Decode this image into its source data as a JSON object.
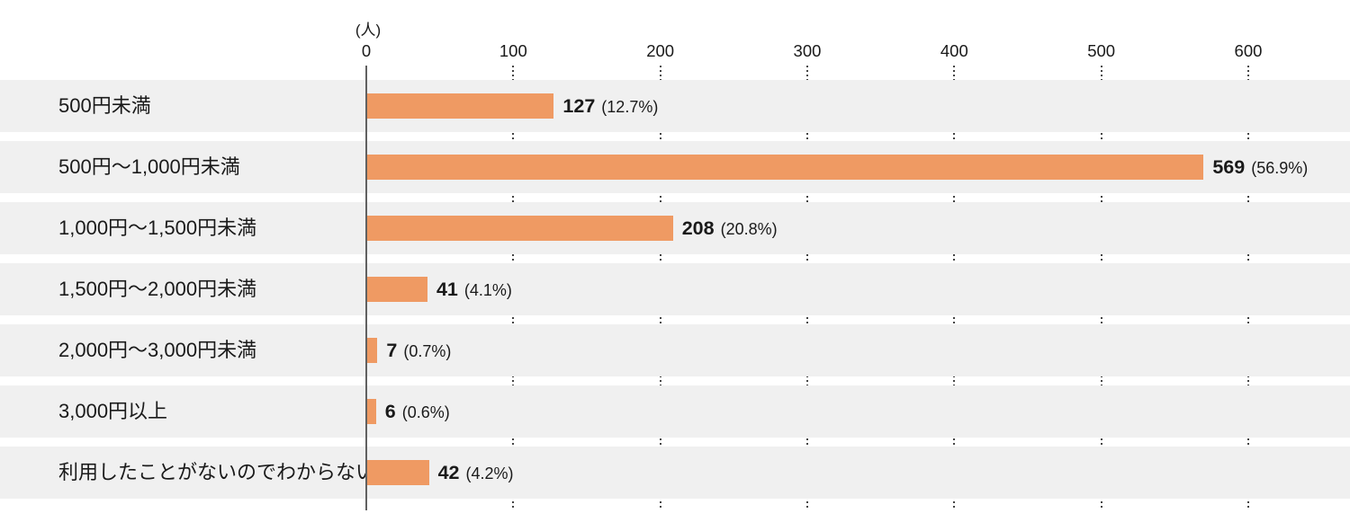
{
  "chart_data": {
    "type": "bar",
    "orientation": "horizontal",
    "title": "",
    "unit_label": "(人)",
    "xlabel": "",
    "ylabel": "",
    "x_ticks": [
      0,
      100,
      200,
      300,
      400,
      500,
      600
    ],
    "xlim": [
      0,
      670
    ],
    "grid": "dotted-vertical-in-row-gaps",
    "legend": "none",
    "categories": [
      "500円未満",
      "500円～1,000円未満",
      "1,000円～1,500円未満",
      "1,500円～2,000円未満",
      "2,000円～3,000円未満",
      "3,000円以上",
      "利用したことがないのでわからない"
    ],
    "values": [
      127,
      569,
      208,
      41,
      7,
      6,
      42
    ],
    "percent_labels": [
      "(12.7%)",
      "(56.9%)",
      "(20.8%)",
      "(4.1%)",
      "(0.7%)",
      "(0.6%)",
      "(4.2%)"
    ],
    "colors": {
      "bar": "#EF9A63",
      "row_band": "#F0F0F0",
      "axis_line": "#616161",
      "grid_dots": "#444444",
      "text": "#1A1A1A",
      "background": "#FFFFFF"
    }
  }
}
